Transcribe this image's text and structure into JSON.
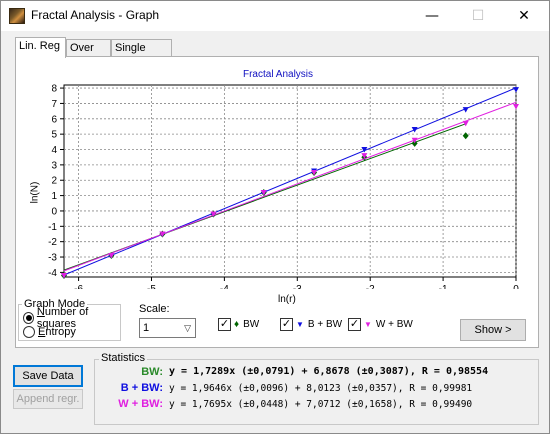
{
  "window": {
    "title": "Fractal Analysis - Graph",
    "minimize_glyph": "—",
    "maximize_glyph": "☐",
    "close_glyph": "✕"
  },
  "tabs": [
    {
      "label": "Lin. Reg",
      "active": true
    },
    {
      "label": "Over All",
      "active": false
    },
    {
      "label": "Single Step",
      "active": false
    }
  ],
  "chart_data": {
    "type": "scatter",
    "title": "Fractal Analysis",
    "xlabel": "ln(r)",
    "ylabel": "ln(N)",
    "xlim": [
      -6.2,
      0
    ],
    "ylim": [
      -4.3,
      8.2
    ],
    "xticks": [
      -6,
      -5,
      -4,
      -3,
      -2,
      -1,
      0
    ],
    "yticks": [
      -4,
      -3,
      -2,
      -1,
      0,
      1,
      2,
      3,
      4,
      5,
      6,
      7,
      8
    ],
    "grid": true,
    "series": [
      {
        "name": "BW",
        "color": "#006400",
        "marker": "diamond",
        "x": [
          -6.2,
          -5.55,
          -4.85,
          -4.15,
          -3.46,
          -2.77,
          -2.08,
          -1.39,
          -0.69
        ],
        "y": [
          -4.2,
          -2.9,
          -1.5,
          -0.2,
          1.2,
          2.5,
          3.5,
          4.4,
          4.9
        ],
        "fit": {
          "slope": 1.7289,
          "intercept": 6.8678
        }
      },
      {
        "name": "B + BW",
        "color": "#1010e0",
        "marker": "triangle-down",
        "x": [
          -6.2,
          -5.55,
          -4.85,
          -4.15,
          -3.46,
          -2.77,
          -2.08,
          -1.39,
          -0.69,
          0
        ],
        "y": [
          -4.2,
          -2.9,
          -1.5,
          -0.2,
          1.2,
          2.6,
          4.0,
          5.3,
          6.6,
          7.9
        ],
        "fit": {
          "slope": 1.9646,
          "intercept": 8.0123
        }
      },
      {
        "name": "W + BW",
        "color": "#e020e0",
        "marker": "triangle-down",
        "x": [
          -6.2,
          -5.55,
          -4.85,
          -4.15,
          -3.46,
          -2.77,
          -2.08,
          -1.39,
          -0.69,
          0
        ],
        "y": [
          -4.2,
          -2.9,
          -1.5,
          -0.2,
          1.2,
          2.5,
          3.6,
          4.6,
          5.7,
          6.8
        ],
        "fit": {
          "slope": 1.7695,
          "intercept": 7.0712
        }
      }
    ]
  },
  "graph_mode": {
    "title": "Graph Mode",
    "options": [
      {
        "label": "Number of squares",
        "checked": true
      },
      {
        "label": "Entropy",
        "checked": false
      }
    ]
  },
  "scale": {
    "label": "Scale:",
    "value": "1"
  },
  "series_toggles": [
    {
      "label": "BW",
      "checked": true,
      "glyph": "♦",
      "color": "#006400"
    },
    {
      "label": "B + BW",
      "checked": true,
      "glyph": "▼",
      "color": "#1010e0"
    },
    {
      "label": "W + BW",
      "checked": true,
      "glyph": "▼",
      "color": "#e020e0"
    }
  ],
  "show_button": "Show >",
  "save_data_button": "Save Data",
  "append_regr_button": "Append regr.",
  "statistics": {
    "title": "Statistics",
    "rows": [
      {
        "name": "BW:",
        "color": "#2a8a2a",
        "equation": "y = 1,7289x (±0,0791) +  6,8678 (±0,3087), R = 0,98554",
        "bold": true
      },
      {
        "name": "B + BW:",
        "color": "#1010e0",
        "equation": "y = 1,9646x (±0,0096) +  8,0123 (±0,0357), R = 0,99981",
        "bold": false
      },
      {
        "name": "W + BW:",
        "color": "#e020e0",
        "equation": "y = 1,7695x (±0,0448) +  7,0712 (±0,1658), R = 0,99490",
        "bold": false
      }
    ]
  }
}
